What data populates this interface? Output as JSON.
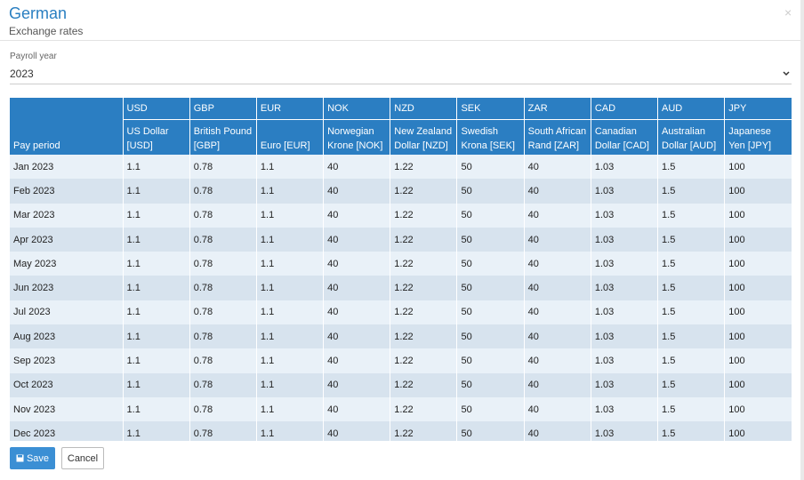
{
  "header": {
    "title": "German",
    "subtitle": "Exchange rates",
    "close": "×"
  },
  "payroll_year": {
    "label": "Payroll year",
    "value": "2023"
  },
  "table": {
    "period_header": "Pay period",
    "columns": [
      {
        "code": "USD",
        "name": "US Dollar [USD]"
      },
      {
        "code": "GBP",
        "name": "British Pound [GBP]"
      },
      {
        "code": "EUR",
        "name": "Euro [EUR]"
      },
      {
        "code": "NOK",
        "name": "Norwegian Krone [NOK]"
      },
      {
        "code": "NZD",
        "name": "New Zealand Dollar [NZD]"
      },
      {
        "code": "SEK",
        "name": "Swedish Krona [SEK]"
      },
      {
        "code": "ZAR",
        "name": "South African Rand [ZAR]"
      },
      {
        "code": "CAD",
        "name": "Canadian Dollar [CAD]"
      },
      {
        "code": "AUD",
        "name": "Australian Dollar [AUD]"
      },
      {
        "code": "JPY",
        "name": "Japanese Yen [JPY]"
      }
    ],
    "rows": [
      [
        "Jan 2023",
        "1.1",
        "0.78",
        "1.1",
        "40",
        "1.22",
        "50",
        "40",
        "1.03",
        "1.5",
        "100"
      ],
      [
        "Feb 2023",
        "1.1",
        "0.78",
        "1.1",
        "40",
        "1.22",
        "50",
        "40",
        "1.03",
        "1.5",
        "100"
      ],
      [
        "Mar 2023",
        "1.1",
        "0.78",
        "1.1",
        "40",
        "1.22",
        "50",
        "40",
        "1.03",
        "1.5",
        "100"
      ],
      [
        "Apr 2023",
        "1.1",
        "0.78",
        "1.1",
        "40",
        "1.22",
        "50",
        "40",
        "1.03",
        "1.5",
        "100"
      ],
      [
        "May 2023",
        "1.1",
        "0.78",
        "1.1",
        "40",
        "1.22",
        "50",
        "40",
        "1.03",
        "1.5",
        "100"
      ],
      [
        "Jun 2023",
        "1.1",
        "0.78",
        "1.1",
        "40",
        "1.22",
        "50",
        "40",
        "1.03",
        "1.5",
        "100"
      ],
      [
        "Jul 2023",
        "1.1",
        "0.78",
        "1.1",
        "40",
        "1.22",
        "50",
        "40",
        "1.03",
        "1.5",
        "100"
      ],
      [
        "Aug 2023",
        "1.1",
        "0.78",
        "1.1",
        "40",
        "1.22",
        "50",
        "40",
        "1.03",
        "1.5",
        "100"
      ],
      [
        "Sep 2023",
        "1.1",
        "0.78",
        "1.1",
        "40",
        "1.22",
        "50",
        "40",
        "1.03",
        "1.5",
        "100"
      ],
      [
        "Oct 2023",
        "1.1",
        "0.78",
        "1.1",
        "40",
        "1.22",
        "50",
        "40",
        "1.03",
        "1.5",
        "100"
      ],
      [
        "Nov 2023",
        "1.1",
        "0.78",
        "1.1",
        "40",
        "1.22",
        "50",
        "40",
        "1.03",
        "1.5",
        "100"
      ],
      [
        "Dec 2023",
        "1.1",
        "0.78",
        "1.1",
        "40",
        "1.22",
        "50",
        "40",
        "1.03",
        "1.5",
        "100"
      ]
    ]
  },
  "buttons": {
    "save": "Save",
    "cancel": "Cancel"
  }
}
